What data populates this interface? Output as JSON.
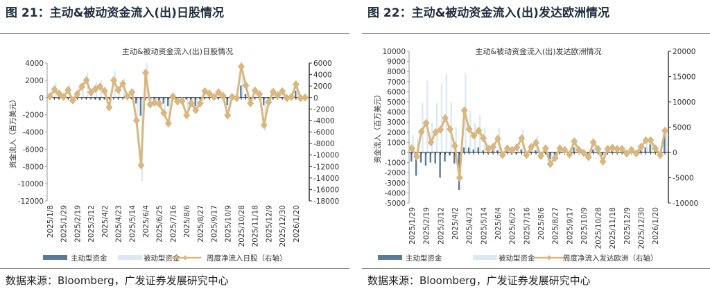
{
  "figures": [
    {
      "title": "图 21：主动&被动资金流入(出)日股情况",
      "source": "数据来源：Bloomberg，广发证券发展研究中心"
    },
    {
      "title": "图 22：主动&被动资金流入(出)发达欧洲情况",
      "source": "数据来源：Bloomberg，广发证券发展研究中心"
    }
  ],
  "colors": {
    "active": "#5b7a99",
    "passive": "#dce8f3",
    "line": "#d9b77e"
  },
  "chart_data": [
    {
      "type": "bar+line",
      "title": "主动&被动资金流入(出)日股情况",
      "ylabel": "资金流入（百万美元）",
      "ylim": [
        -12000,
        4000
      ],
      "yticks": [
        4000,
        2000,
        0,
        -2000,
        -4000,
        -6000,
        -8000,
        -10000,
        -12000
      ],
      "y2lim": [
        -18000,
        6000
      ],
      "y2ticks": [
        6000,
        4000,
        2000,
        0,
        -2000,
        -4000,
        -6000,
        -8000,
        -10000,
        -12000,
        -14000,
        -16000,
        -18000
      ],
      "xtick_labels": [
        "2025/1/8",
        "2025/1/29",
        "2025/2/19",
        "2025/3/12",
        "2025/4/2",
        "2025/4/23",
        "2025/5/14",
        "2025/6/4",
        "2025/6/25",
        "2025/7/16",
        "2025/8/6",
        "2025/8/27",
        "2025/9/17",
        "2025/10/9",
        "2025/10/28",
        "2025/11/18",
        "2025/12/9",
        "2025/12/30",
        "2026/1/20"
      ],
      "series": [
        {
          "name": "主动型资金",
          "type": "bar",
          "values": [
            -200,
            -100,
            -150,
            -100,
            -100,
            -200,
            -100,
            -50,
            -150,
            -100,
            -200,
            -300,
            -150,
            -100,
            -50,
            -100,
            0,
            -100,
            -200,
            -700,
            -2100,
            -300,
            -200,
            -300,
            -400,
            -700,
            -1000,
            -100,
            -200,
            -300,
            -200,
            -400,
            -1000,
            -200,
            -100,
            -100,
            -100,
            -100,
            -200,
            -900,
            -100,
            -200,
            1400,
            400,
            -200,
            -100,
            -100,
            -900,
            -200,
            -100,
            -100,
            -100,
            -100,
            -100,
            800,
            -100,
            -100
          ]
        },
        {
          "name": "被动型资金",
          "type": "bar",
          "values": [
            300,
            1700,
            800,
            200,
            1600,
            -300,
            700,
            1200,
            2900,
            1000,
            1800,
            2000,
            1300,
            -800,
            3100,
            1400,
            2200,
            300,
            1000,
            -2700,
            -9700,
            4000,
            -800,
            -600,
            -600,
            -1800,
            -2300,
            400,
            -400,
            -300,
            -1700,
            -500,
            -1300,
            -500,
            1000,
            600,
            200,
            700,
            300,
            -1300,
            200,
            100,
            3600,
            1000,
            -600,
            1000,
            600,
            -3900,
            -500,
            900,
            400,
            900,
            -100,
            100,
            1500,
            -100,
            -100
          ]
        },
        {
          "name": "周度净流入日股（右轴）",
          "type": "line",
          "axis": "right",
          "values": [
            200,
            1400,
            700,
            100,
            1300,
            -500,
            600,
            1900,
            3000,
            900,
            1500,
            1900,
            1100,
            -1700,
            3000,
            1300,
            2400,
            200,
            900,
            -4000,
            -11800,
            4300,
            -1200,
            -900,
            -1100,
            -2700,
            -4500,
            200,
            -700,
            -600,
            -3100,
            -1000,
            -2200,
            -1000,
            1100,
            700,
            100,
            900,
            300,
            -3100,
            100,
            -100,
            5400,
            2100,
            -1000,
            1200,
            600,
            -4800,
            -800,
            1000,
            400,
            1100,
            -100,
            100,
            2300,
            -100,
            0
          ]
        }
      ],
      "legend": "bottom"
    },
    {
      "type": "bar+line",
      "title": "主动&被动资金流入(出)发达欧洲情况",
      "ylabel": "资金流入（百万美元）",
      "ylim": [
        -5000,
        10000
      ],
      "yticks": [
        10000,
        9000,
        8000,
        7000,
        6000,
        5000,
        4000,
        3000,
        2000,
        1000,
        0,
        -1000,
        -2000,
        -3000,
        -4000,
        -5000
      ],
      "y2lim": [
        -10000,
        20000
      ],
      "y2ticks": [
        20000,
        15000,
        10000,
        5000,
        0,
        -5000,
        -10000
      ],
      "xtick_labels": [
        "2025/1/29",
        "2025/2/19",
        "2025/3/12",
        "2025/4/2",
        "2025/4/23",
        "2025/5/14",
        "2025/6/4",
        "2025/6/25",
        "2025/7/16",
        "2025/8/6",
        "2025/8/27",
        "2025/9/17",
        "2025/10/9",
        "2025/10/28",
        "2025/11/18",
        "2025/12/9",
        "2025/12/30",
        "2026/1/20"
      ],
      "series": [
        {
          "name": "主动型资金",
          "type": "bar",
          "values": [
            -900,
            -2300,
            -1000,
            -1300,
            -1000,
            -1100,
            -2500,
            -900,
            -300,
            -1100,
            -3700,
            500,
            500,
            300,
            500,
            200,
            -100,
            200,
            200,
            -200,
            100,
            -200,
            -200,
            300,
            -100,
            100,
            200,
            -200,
            100,
            -700,
            -300,
            100,
            100,
            -200,
            500,
            100,
            -100,
            -200,
            300,
            100,
            -300,
            100,
            200,
            100,
            100,
            -100,
            100,
            -100,
            200,
            500,
            800,
            300,
            -200,
            1900
          ]
        },
        {
          "name": "被动型资金",
          "type": "bar",
          "values": [
            1700,
            1400,
            4900,
            7100,
            3000,
            4900,
            6800,
            7700,
            5000,
            2500,
            -1200,
            7800,
            4100,
            2900,
            3700,
            2500,
            800,
            600,
            2400,
            -300,
            600,
            400,
            800,
            2300,
            -300,
            800,
            1600,
            -500,
            600,
            -900,
            -400,
            600,
            400,
            -300,
            1300,
            400,
            -100,
            -400,
            1200,
            500,
            -800,
            500,
            600,
            400,
            500,
            -100,
            400,
            -100,
            700,
            1300,
            1300,
            600,
            -300,
            2200
          ]
        },
        {
          "name": "周度净流入发达欧洲（右轴）",
          "type": "line",
          "axis": "right",
          "values": [
            800,
            -800,
            4100,
            5800,
            2000,
            4000,
            4500,
            6800,
            4600,
            1300,
            -5000,
            8300,
            4600,
            3300,
            4300,
            2800,
            700,
            1100,
            2700,
            -500,
            800,
            500,
            1000,
            2800,
            -500,
            1100,
            1900,
            -700,
            800,
            -2300,
            -1100,
            800,
            500,
            -400,
            2200,
            500,
            -100,
            -900,
            2000,
            700,
            -1800,
            700,
            900,
            700,
            700,
            -200,
            500,
            -200,
            1100,
            2400,
            2400,
            800,
            -500,
            4300
          ]
        }
      ],
      "legend": "bottom"
    }
  ]
}
